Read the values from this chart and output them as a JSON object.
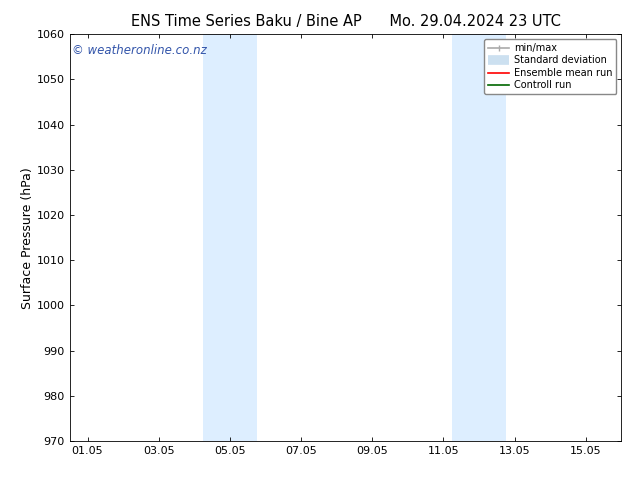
{
  "title_left": "ENS Time Series Baku / Bine AP",
  "title_right": "Mo. 29.04.2024 23 UTC",
  "ylabel": "Surface Pressure (hPa)",
  "ylim": [
    970,
    1060
  ],
  "yticks": [
    970,
    980,
    990,
    1000,
    1010,
    1020,
    1030,
    1040,
    1050,
    1060
  ],
  "xlim": [
    0.0,
    15.5
  ],
  "xtick_labels": [
    "01.05",
    "03.05",
    "05.05",
    "07.05",
    "09.05",
    "11.05",
    "13.05",
    "15.05"
  ],
  "xtick_positions": [
    0.5,
    2.5,
    4.5,
    6.5,
    8.5,
    10.5,
    12.5,
    14.5
  ],
  "shaded_bands": [
    {
      "xstart": 3.75,
      "xend": 5.25
    },
    {
      "xstart": 10.75,
      "xend": 12.25
    }
  ],
  "shade_color": "#ddeeff",
  "background_color": "#ffffff",
  "watermark_text": "© weatheronline.co.nz",
  "watermark_color": "#3355aa",
  "legend_entries": [
    {
      "label": "min/max",
      "color": "#aaaaaa",
      "lw": 1.2
    },
    {
      "label": "Standard deviation",
      "color": "#cce0f0",
      "lw": 7
    },
    {
      "label": "Ensemble mean run",
      "color": "#ff0000",
      "lw": 1.2
    },
    {
      "label": "Controll run",
      "color": "#006600",
      "lw": 1.2
    }
  ],
  "title_fontsize": 10.5,
  "tick_fontsize": 8,
  "ylabel_fontsize": 9,
  "watermark_fontsize": 8.5
}
